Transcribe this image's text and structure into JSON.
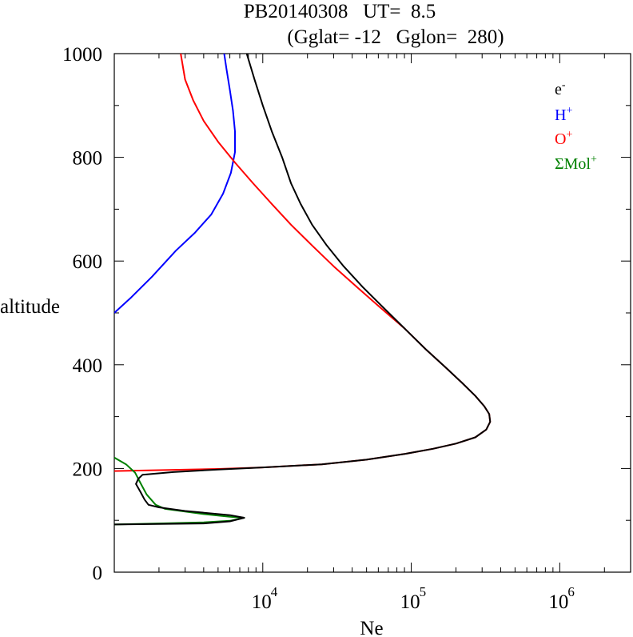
{
  "chart_data": {
    "type": "line",
    "title_line1": "PB20140308   UT=  8.5",
    "title_line2": "(Gglat= -12   Gglon=  280)",
    "xlabel": "Ne",
    "ylabel": "altitude",
    "x_scale": "log",
    "xlim": [
      1000,
      3000000
    ],
    "ylim": [
      0,
      1000
    ],
    "x_ticks": [
      {
        "base": "10",
        "exp": "4",
        "value": 10000
      },
      {
        "base": "10",
        "exp": "5",
        "value": 100000
      },
      {
        "base": "10",
        "exp": "6",
        "value": 1000000
      }
    ],
    "y_ticks": [
      "0",
      "200",
      "400",
      "600",
      "800",
      "1000"
    ],
    "y_tick_values": [
      0,
      200,
      400,
      600,
      800,
      1000
    ],
    "legend_position": "top-right",
    "legend": [
      {
        "base": "e",
        "sup": "-",
        "color": "#000000"
      },
      {
        "base": "H",
        "sup": "+",
        "color": "#0000ff"
      },
      {
        "base": "O",
        "sup": "+",
        "color": "#ff0000"
      },
      {
        "base": "ΣMol",
        "sup": "+",
        "color": "#008000"
      }
    ],
    "series": [
      {
        "name": "e-",
        "color": "#000000",
        "points": [
          [
            1000,
            92
          ],
          [
            4000,
            94
          ],
          [
            6000,
            98
          ],
          [
            7500,
            105
          ],
          [
            6000,
            110
          ],
          [
            3000,
            118
          ],
          [
            2000,
            125
          ],
          [
            1700,
            130
          ],
          [
            1600,
            140
          ],
          [
            1500,
            155
          ],
          [
            1400,
            170
          ],
          [
            1450,
            180
          ],
          [
            1550,
            188
          ],
          [
            2500,
            193
          ],
          [
            5000,
            198
          ],
          [
            10000,
            202
          ],
          [
            25000,
            208
          ],
          [
            50000,
            217
          ],
          [
            90000,
            228
          ],
          [
            140000,
            238
          ],
          [
            200000,
            248
          ],
          [
            270000,
            260
          ],
          [
            320000,
            275
          ],
          [
            340000,
            290
          ],
          [
            335000,
            305
          ],
          [
            310000,
            320
          ],
          [
            270000,
            340
          ],
          [
            220000,
            365
          ],
          [
            170000,
            395
          ],
          [
            125000,
            430
          ],
          [
            90000,
            470
          ],
          [
            65000,
            510
          ],
          [
            47000,
            550
          ],
          [
            35000,
            590
          ],
          [
            27000,
            630
          ],
          [
            21500,
            670
          ],
          [
            18000,
            710
          ],
          [
            15500,
            750
          ],
          [
            13500,
            800
          ],
          [
            11500,
            850
          ],
          [
            10000,
            900
          ],
          [
            8800,
            950
          ],
          [
            7800,
            1000
          ]
        ]
      },
      {
        "name": "H+",
        "color": "#0000ff",
        "points": [
          [
            1000,
            500
          ],
          [
            1300,
            530
          ],
          [
            1800,
            570
          ],
          [
            2600,
            620
          ],
          [
            3500,
            655
          ],
          [
            4500,
            690
          ],
          [
            5400,
            730
          ],
          [
            6100,
            770
          ],
          [
            6500,
            810
          ],
          [
            6500,
            850
          ],
          [
            6300,
            890
          ],
          [
            6000,
            930
          ],
          [
            5700,
            970
          ],
          [
            5500,
            1000
          ]
        ]
      },
      {
        "name": "O+",
        "color": "#ff0000",
        "points": [
          [
            1000,
            195
          ],
          [
            5000,
            199
          ],
          [
            10000,
            202
          ],
          [
            25000,
            208
          ],
          [
            50000,
            217
          ],
          [
            90000,
            228
          ],
          [
            140000,
            238
          ],
          [
            200000,
            248
          ],
          [
            270000,
            260
          ],
          [
            320000,
            275
          ],
          [
            340000,
            290
          ],
          [
            335000,
            305
          ],
          [
            310000,
            320
          ],
          [
            270000,
            340
          ],
          [
            220000,
            365
          ],
          [
            170000,
            395
          ],
          [
            125000,
            430
          ],
          [
            90000,
            470
          ],
          [
            62000,
            510
          ],
          [
            43000,
            550
          ],
          [
            30000,
            590
          ],
          [
            21500,
            630
          ],
          [
            15500,
            670
          ],
          [
            11500,
            710
          ],
          [
            8600,
            750
          ],
          [
            6500,
            790
          ],
          [
            5000,
            830
          ],
          [
            4000,
            870
          ],
          [
            3400,
            910
          ],
          [
            3000,
            950
          ],
          [
            2800,
            1000
          ]
        ]
      },
      {
        "name": "ΣMol+",
        "color": "#008000",
        "points": [
          [
            1000,
            221
          ],
          [
            1200,
            208
          ],
          [
            1380,
            192
          ],
          [
            1500,
            172
          ],
          [
            1650,
            150
          ],
          [
            1900,
            130
          ],
          [
            2200,
            122
          ],
          [
            4000,
            112
          ],
          [
            6000,
            107
          ],
          [
            7500,
            105
          ],
          [
            6000,
            99
          ],
          [
            4000,
            96
          ],
          [
            2000,
            94
          ],
          [
            1000,
            92
          ]
        ]
      }
    ]
  }
}
